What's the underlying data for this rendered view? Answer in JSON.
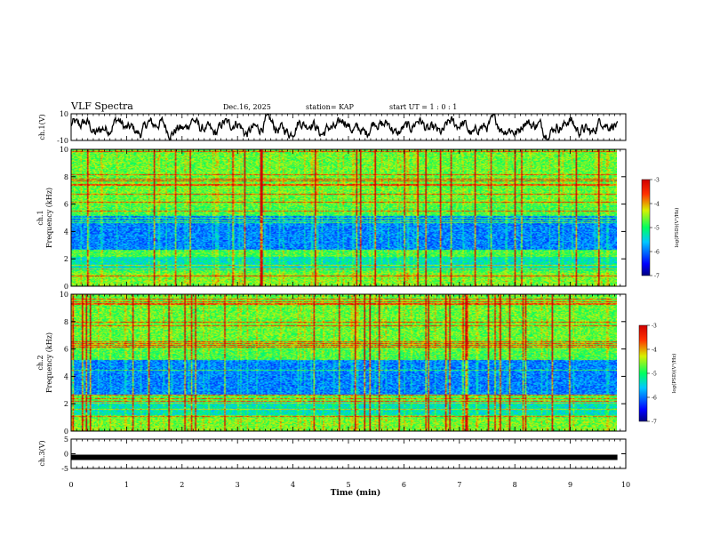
{
  "header": {
    "title": "VLF Spectra",
    "date": "Dec.16, 2025",
    "station": "station= KAP",
    "start": "start UT = 1 : 0 : 1"
  },
  "chart_data": [
    {
      "type": "line",
      "id": "ch1",
      "ylabel": "ch.1(V)",
      "ylim": [
        -10,
        10
      ],
      "yticks": [
        {
          "v": 10,
          "label": "10"
        },
        {
          "v": -10,
          "label": "-10"
        }
      ],
      "xlim": [
        0,
        10
      ],
      "description_series": "ch.1 waveform amplitude, oscillating roughly between -8 and 8 V"
    },
    {
      "type": "heatmap",
      "id": "ch1spec",
      "ylabel_lines": [
        "ch.1",
        "Frequency (kHz)"
      ],
      "ylim": [
        0,
        10
      ],
      "yticks": [
        {
          "v": 0,
          "label": "0"
        },
        {
          "v": 2,
          "label": "2"
        },
        {
          "v": 4,
          "label": "4"
        },
        {
          "v": 6,
          "label": "6"
        },
        {
          "v": 8,
          "label": "8"
        },
        {
          "v": 10,
          "label": "10"
        }
      ],
      "xlim": [
        0,
        9.85
      ],
      "colorbar": {
        "label": "log(PSD)(V²/Hz)",
        "range": [
          -7,
          -3
        ],
        "ticks": [
          {
            "v": -3,
            "label": "-3"
          },
          {
            "v": -4,
            "label": "-4"
          },
          {
            "v": -5,
            "label": "-5"
          },
          {
            "v": -6,
            "label": "-6"
          },
          {
            "v": -7,
            "label": "-7"
          }
        ]
      }
    },
    {
      "type": "heatmap",
      "id": "ch2spec",
      "ylabel_lines": [
        "ch.2",
        "Frequency (kHz)"
      ],
      "ylim": [
        0,
        10
      ],
      "yticks": [
        {
          "v": 0,
          "label": "0"
        },
        {
          "v": 2,
          "label": "2"
        },
        {
          "v": 4,
          "label": "4"
        },
        {
          "v": 6,
          "label": "6"
        },
        {
          "v": 8,
          "label": "8"
        },
        {
          "v": 10,
          "label": "10"
        }
      ],
      "xlim": [
        0,
        9.85
      ],
      "colorbar": {
        "label": "log(PSD)(V²/Hz)",
        "range": [
          -7,
          -3
        ],
        "ticks": [
          {
            "v": -3,
            "label": "-3"
          },
          {
            "v": -4,
            "label": "-4"
          },
          {
            "v": -5,
            "label": "-5"
          },
          {
            "v": -6,
            "label": "-6"
          },
          {
            "v": -7,
            "label": "-7"
          }
        ]
      }
    },
    {
      "type": "line",
      "id": "ch3",
      "ylabel": "ch.3(V)",
      "ylim": [
        -5,
        5
      ],
      "yticks": [
        {
          "v": 5,
          "label": "5"
        },
        {
          "v": 0,
          "label": "0"
        },
        {
          "v": -5,
          "label": "-5"
        }
      ],
      "value": -1.2,
      "xlim": [
        0,
        9.85
      ]
    }
  ],
  "xaxis": {
    "label": "Time (min)",
    "range": [
      0,
      10
    ],
    "ticks": [
      {
        "v": 0,
        "label": "0"
      },
      {
        "v": 1,
        "label": "1"
      },
      {
        "v": 2,
        "label": "2"
      },
      {
        "v": 3,
        "label": "3"
      },
      {
        "v": 4,
        "label": "4"
      },
      {
        "v": 5,
        "label": "5"
      },
      {
        "v": 6,
        "label": "6"
      },
      {
        "v": 7,
        "label": "7"
      },
      {
        "v": 8,
        "label": "8"
      },
      {
        "v": 9,
        "label": "9"
      },
      {
        "v": 10,
        "label": "10"
      }
    ]
  },
  "colors": {
    "line": "#000000",
    "background": "#ffffff"
  }
}
